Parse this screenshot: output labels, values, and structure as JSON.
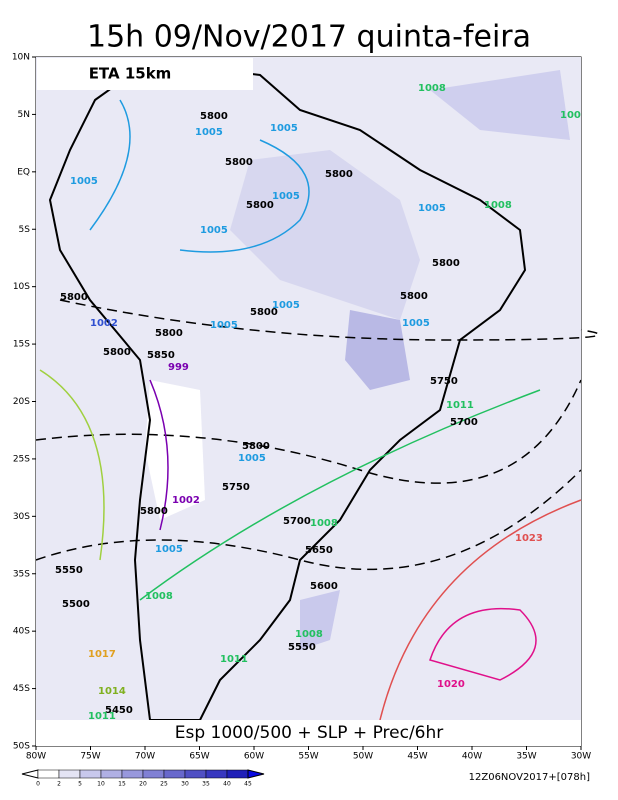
{
  "title": "15h 09/Nov/2017 quinta-feira",
  "model": "ETA 15km",
  "caption": "Esp 1000/500 + SLP + Prec/6hr",
  "run": "12Z06NOV2017+[078h]",
  "lat_ticks": [
    "10N",
    "5N",
    "EQ",
    "5S",
    "10S",
    "15S",
    "20S",
    "25S",
    "30S",
    "35S",
    "40S",
    "45S",
    "50S"
  ],
  "lon_ticks": [
    "80W",
    "75W",
    "70W",
    "65W",
    "60W",
    "55W",
    "50W",
    "45W",
    "40W",
    "35W",
    "30W"
  ],
  "colorbar_labels": [
    0,
    2,
    5,
    10,
    15,
    20,
    25,
    30,
    35,
    40,
    45
  ],
  "contour_labels": [
    "5800",
    "1005",
    "1005",
    "5800",
    "5800",
    "1005",
    "1005",
    "5800",
    "1005",
    "1005",
    "5800",
    "5800",
    "5800",
    "1005",
    "5800",
    "1005",
    "1002",
    "1005",
    "5800",
    "5800",
    "5850",
    "999",
    "5750",
    "1011",
    "5700",
    "5800",
    "1005",
    "5750",
    "1002",
    "5800",
    "5700",
    "1008",
    "1023",
    "1005",
    "5650",
    "5550",
    "5600",
    "1008",
    "5500",
    "1008",
    "5550",
    "1017",
    "1011",
    "1020",
    "1014",
    "5450",
    "1011",
    "1008",
    "1008",
    "100"
  ]
}
